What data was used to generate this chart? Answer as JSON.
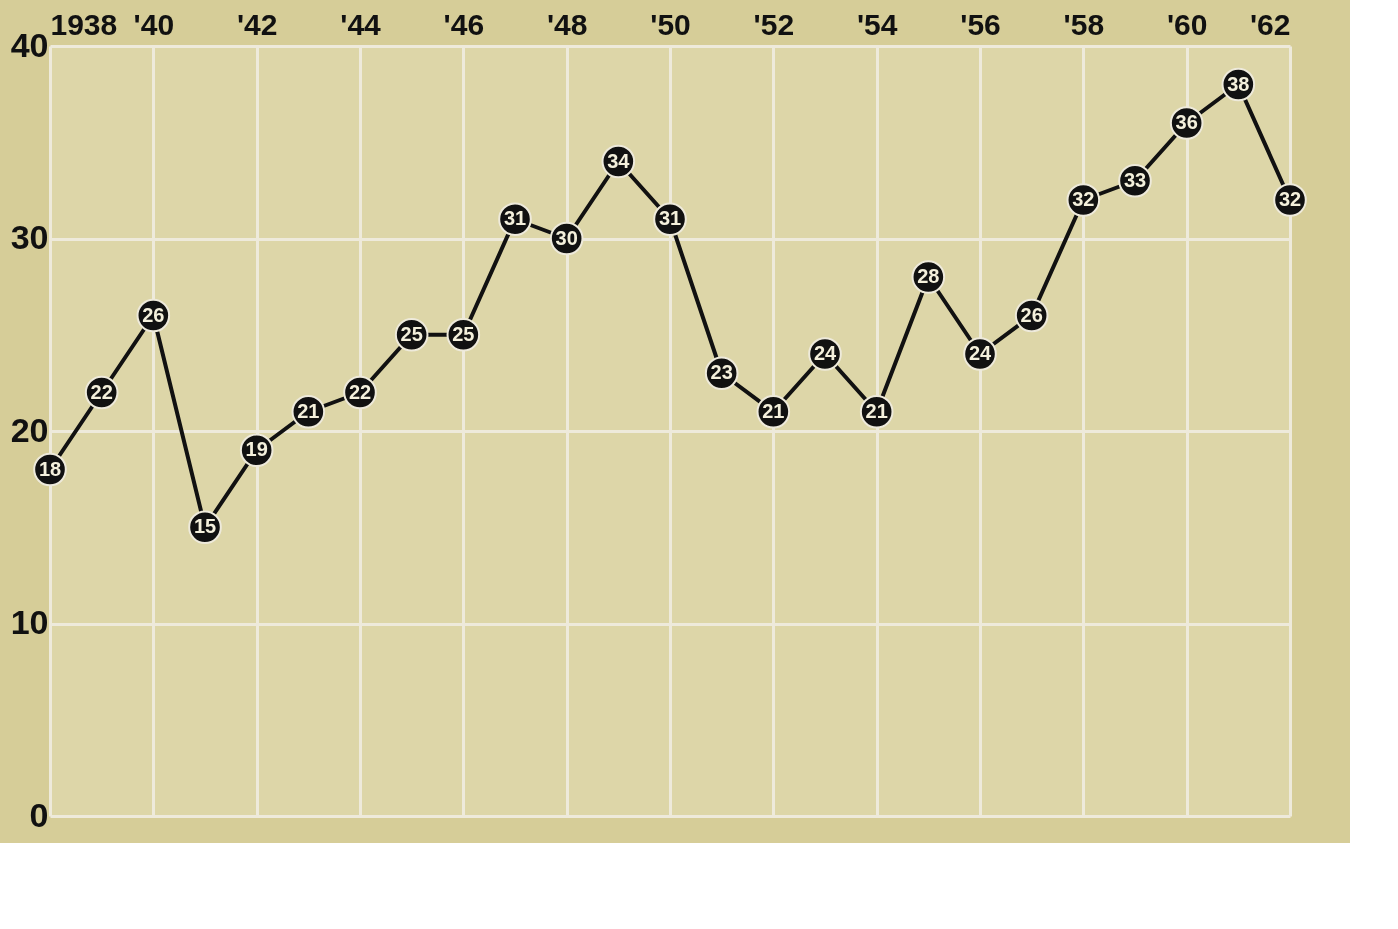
{
  "chart_data": {
    "type": "line",
    "x": [
      1938,
      1939,
      1940,
      1941,
      1942,
      1943,
      1944,
      1945,
      1946,
      1947,
      1948,
      1949,
      1950,
      1951,
      1952,
      1953,
      1954,
      1955,
      1956,
      1957,
      1958,
      1959,
      1960,
      1961,
      1962
    ],
    "series": [
      {
        "color": "#111111",
        "values": [
          18,
          22,
          26,
          15,
          19,
          21,
          22,
          25,
          25,
          31,
          30,
          34,
          31,
          23,
          21,
          24,
          21,
          28,
          24,
          26,
          32,
          33,
          36,
          38,
          32
        ]
      }
    ],
    "xlim": [
      1938,
      1962
    ],
    "xticks": [
      1938,
      {
        "value": 1940,
        "label": "'40"
      },
      {
        "value": 1942,
        "label": "'42"
      },
      {
        "value": 1944,
        "label": "'44"
      },
      {
        "value": 1946,
        "label": "'46"
      },
      {
        "value": 1948,
        "label": "'48"
      },
      {
        "value": 1950,
        "label": "'50"
      },
      {
        "value": 1952,
        "label": "'52"
      },
      {
        "value": 1954,
        "label": "'54"
      },
      {
        "value": 1956,
        "label": "'56"
      },
      {
        "value": 1958,
        "label": "'58"
      },
      {
        "value": 1960,
        "label": "'60"
      },
      {
        "value": 1962,
        "label": "'62"
      }
    ],
    "ylim": [
      0,
      40
    ],
    "yticks": [
      0,
      10,
      20,
      30,
      40
    ],
    "grid": true,
    "marker": "circle",
    "line_style": "solid",
    "data_labels": true
  }
}
